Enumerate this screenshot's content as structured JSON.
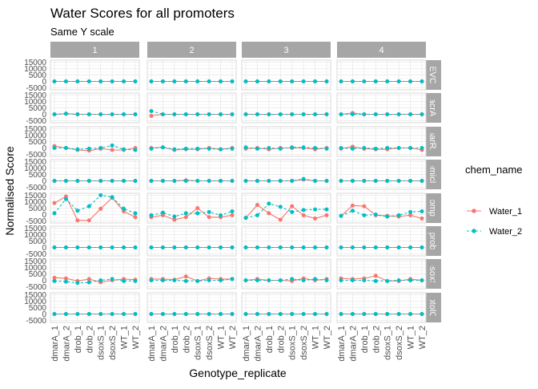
{
  "chart_data": {
    "type": "line",
    "title": "Water Scores for all promoters",
    "subtitle": "Same Y scale",
    "xlabel": "Genotype_replicate",
    "ylabel": "Normalised Score",
    "categories": [
      "dmarA_1",
      "dmarA_2",
      "drob_1",
      "drob_2",
      "dsoxS_1",
      "dsoxS_2",
      "WT_1",
      "WT_2"
    ],
    "ylim": [
      -6500,
      16500
    ],
    "yticks": [
      -5000,
      0,
      5000,
      10000,
      15000
    ],
    "ytick_labels": [
      "-5000",
      "0",
      "5000",
      "10000",
      "15000"
    ],
    "grid": true,
    "facet_columns": [
      "1",
      "2",
      "3",
      "4"
    ],
    "facet_rows": [
      "EVC",
      "pacrAB",
      "pmarRAB",
      "pmicF",
      "pompF",
      "prob",
      "psoxS",
      "ptolC"
    ],
    "legend": {
      "title": "chem_name",
      "position": "right",
      "entries": [
        "Water_1",
        "Water_2"
      ]
    },
    "series_styles": [
      {
        "name": "Water_1",
        "color": "#F8766D",
        "dash": "solid"
      },
      {
        "name": "Water_2",
        "color": "#00BFC4",
        "dash": "dashed"
      }
    ],
    "panels": [
      {
        "row": "EVC",
        "col": "1",
        "series": [
          {
            "name": "Water_1",
            "values": [
              0,
              0,
              0,
              0,
              0,
              0,
              0,
              0
            ]
          },
          {
            "name": "Water_2",
            "values": [
              0,
              0,
              0,
              0,
              0,
              0,
              0,
              0
            ]
          }
        ]
      },
      {
        "row": "EVC",
        "col": "2",
        "series": [
          {
            "name": "Water_1",
            "values": [
              0,
              0,
              0,
              0,
              0,
              0,
              0,
              0
            ]
          },
          {
            "name": "Water_2",
            "values": [
              0,
              0,
              0,
              0,
              0,
              0,
              0,
              0
            ]
          }
        ]
      },
      {
        "row": "EVC",
        "col": "3",
        "series": [
          {
            "name": "Water_1",
            "values": [
              0,
              0,
              0,
              0,
              0,
              0,
              0,
              0
            ]
          },
          {
            "name": "Water_2",
            "values": [
              0,
              0,
              0,
              0,
              0,
              0,
              0,
              0
            ]
          }
        ]
      },
      {
        "row": "EVC",
        "col": "4",
        "series": [
          {
            "name": "Water_1",
            "values": [
              0,
              0,
              0,
              0,
              0,
              0,
              0,
              0
            ]
          },
          {
            "name": "Water_2",
            "values": [
              0,
              0,
              0,
              0,
              0,
              0,
              0,
              0
            ]
          }
        ]
      },
      {
        "row": "pacrAB",
        "col": "1",
        "series": [
          {
            "name": "Water_1",
            "values": [
              0,
              500,
              0,
              0,
              0,
              0,
              0,
              0
            ]
          },
          {
            "name": "Water_2",
            "values": [
              0,
              500,
              0,
              0,
              0,
              0,
              0,
              0
            ]
          }
        ]
      },
      {
        "row": "pacrAB",
        "col": "2",
        "series": [
          {
            "name": "Water_1",
            "values": [
              -1200,
              0,
              0,
              0,
              0,
              0,
              0,
              0
            ]
          },
          {
            "name": "Water_2",
            "values": [
              2500,
              0,
              0,
              0,
              0,
              0,
              0,
              0
            ]
          }
        ]
      },
      {
        "row": "pacrAB",
        "col": "3",
        "series": [
          {
            "name": "Water_1",
            "values": [
              0,
              0,
              0,
              0,
              0,
              0,
              0,
              0
            ]
          },
          {
            "name": "Water_2",
            "values": [
              0,
              0,
              0,
              0,
              0,
              0,
              0,
              0
            ]
          }
        ]
      },
      {
        "row": "pacrAB",
        "col": "4",
        "series": [
          {
            "name": "Water_1",
            "values": [
              0,
              1000,
              0,
              0,
              0,
              0,
              0,
              0
            ]
          },
          {
            "name": "Water_2",
            "values": [
              0,
              0,
              0,
              0,
              0,
              0,
              0,
              0
            ]
          }
        ]
      },
      {
        "row": "pmarRAB",
        "col": "1",
        "series": [
          {
            "name": "Water_1",
            "values": [
              1500,
              0,
              -1500,
              -2000,
              -500,
              -1500,
              -1500,
              0
            ]
          },
          {
            "name": "Water_2",
            "values": [
              0,
              0,
              -1000,
              -500,
              0,
              2000,
              -1000,
              -1500
            ]
          }
        ]
      },
      {
        "row": "pmarRAB",
        "col": "2",
        "series": [
          {
            "name": "Water_1",
            "values": [
              0,
              500,
              -1500,
              -1000,
              -1000,
              0,
              -1000,
              0
            ]
          },
          {
            "name": "Water_2",
            "values": [
              -500,
              500,
              -1000,
              -500,
              -500,
              -500,
              -1000,
              -500
            ]
          }
        ]
      },
      {
        "row": "pmarRAB",
        "col": "3",
        "series": [
          {
            "name": "Water_1",
            "values": [
              -500,
              0,
              -1000,
              0,
              0,
              0,
              -1000,
              0
            ]
          },
          {
            "name": "Water_2",
            "values": [
              500,
              -500,
              0,
              -500,
              500,
              500,
              0,
              -500
            ]
          }
        ]
      },
      {
        "row": "pmarRAB",
        "col": "4",
        "series": [
          {
            "name": "Water_1",
            "values": [
              -500,
              1000,
              -500,
              -1000,
              -1000,
              0,
              0,
              -1500
            ]
          },
          {
            "name": "Water_2",
            "values": [
              0,
              -500,
              0,
              -500,
              0,
              0,
              0,
              0
            ]
          }
        ]
      },
      {
        "row": "pmicF",
        "col": "1",
        "series": [
          {
            "name": "Water_1",
            "values": [
              0,
              0,
              0,
              0,
              0,
              0,
              0,
              0
            ]
          },
          {
            "name": "Water_2",
            "values": [
              0,
              0,
              0,
              0,
              0,
              0,
              0,
              0
            ]
          }
        ]
      },
      {
        "row": "pmicF",
        "col": "2",
        "series": [
          {
            "name": "Water_1",
            "values": [
              0,
              0,
              0,
              500,
              0,
              0,
              0,
              0
            ]
          },
          {
            "name": "Water_2",
            "values": [
              0,
              0,
              0,
              0,
              0,
              0,
              0,
              0
            ]
          }
        ]
      },
      {
        "row": "pmicF",
        "col": "3",
        "series": [
          {
            "name": "Water_1",
            "values": [
              0,
              0,
              0,
              0,
              0,
              1000,
              0,
              0
            ]
          },
          {
            "name": "Water_2",
            "values": [
              0,
              0,
              0,
              0,
              0,
              1500,
              0,
              0
            ]
          }
        ]
      },
      {
        "row": "pmicF",
        "col": "4",
        "series": [
          {
            "name": "Water_1",
            "values": [
              0,
              0,
              0,
              0,
              0,
              0,
              0,
              0
            ]
          },
          {
            "name": "Water_2",
            "values": [
              0,
              0,
              0,
              0,
              0,
              0,
              0,
              0
            ]
          }
        ]
      },
      {
        "row": "pompF",
        "col": "1",
        "series": [
          {
            "name": "Water_1",
            "values": [
              9000,
              14000,
              -4500,
              -4500,
              4500,
              13000,
              2500,
              -2000
            ]
          },
          {
            "name": "Water_2",
            "values": [
              1000,
              12000,
              3000,
              6500,
              15000,
              13500,
              4500,
              1000
            ]
          }
        ]
      },
      {
        "row": "pompF",
        "col": "2",
        "series": [
          {
            "name": "Water_1",
            "values": [
              -2000,
              -500,
              -4000,
              -2000,
              5000,
              -2000,
              -2000,
              -500
            ]
          },
          {
            "name": "Water_2",
            "values": [
              -500,
              1500,
              -1500,
              1000,
              1000,
              2000,
              -500,
              2500
            ]
          }
        ]
      },
      {
        "row": "pompF",
        "col": "3",
        "series": [
          {
            "name": "Water_1",
            "values": [
              -2500,
              7500,
              1000,
              -4000,
              6500,
              -500,
              -3000,
              -500
            ]
          },
          {
            "name": "Water_2",
            "values": [
              -2500,
              -500,
              8500,
              6000,
              2000,
              3500,
              4000,
              4000
            ]
          }
        ]
      },
      {
        "row": "pompF",
        "col": "4",
        "series": [
          {
            "name": "Water_1",
            "values": [
              -1000,
              7000,
              6500,
              -500,
              -1000,
              -1500,
              -500,
              -3000
            ]
          },
          {
            "name": "Water_2",
            "values": [
              -1000,
              3000,
              -500,
              0,
              -1500,
              -500,
              2000,
              2500
            ]
          }
        ]
      },
      {
        "row": "prob",
        "col": "1",
        "series": [
          {
            "name": "Water_1",
            "values": [
              0,
              0,
              0,
              0,
              0,
              0,
              0,
              0
            ]
          },
          {
            "name": "Water_2",
            "values": [
              0,
              0,
              0,
              0,
              0,
              0,
              0,
              0
            ]
          }
        ]
      },
      {
        "row": "prob",
        "col": "2",
        "series": [
          {
            "name": "Water_1",
            "values": [
              0,
              0,
              0,
              0,
              0,
              0,
              0,
              0
            ]
          },
          {
            "name": "Water_2",
            "values": [
              0,
              0,
              0,
              0,
              0,
              0,
              0,
              0
            ]
          }
        ]
      },
      {
        "row": "prob",
        "col": "3",
        "series": [
          {
            "name": "Water_1",
            "values": [
              0,
              0,
              0,
              0,
              0,
              0,
              0,
              0
            ]
          },
          {
            "name": "Water_2",
            "values": [
              0,
              0,
              0,
              0,
              0,
              0,
              0,
              0
            ]
          }
        ]
      },
      {
        "row": "prob",
        "col": "4",
        "series": [
          {
            "name": "Water_1",
            "values": [
              0,
              0,
              0,
              0,
              0,
              0,
              0,
              0
            ]
          },
          {
            "name": "Water_2",
            "values": [
              0,
              0,
              0,
              0,
              0,
              0,
              0,
              0
            ]
          }
        ]
      },
      {
        "row": "psoxS",
        "col": "1",
        "series": [
          {
            "name": "Water_1",
            "values": [
              2000,
              1500,
              -500,
              1000,
              -1500,
              0,
              1000,
              500
            ]
          },
          {
            "name": "Water_2",
            "values": [
              -500,
              -1000,
              -2000,
              -1500,
              0,
              1000,
              -500,
              -500
            ]
          }
        ]
      },
      {
        "row": "psoxS",
        "col": "2",
        "series": [
          {
            "name": "Water_1",
            "values": [
              1000,
              1000,
              500,
              3000,
              -500,
              1500,
              1000,
              1000
            ]
          },
          {
            "name": "Water_2",
            "values": [
              0,
              0,
              0,
              -500,
              -500,
              0,
              0,
              1000
            ]
          }
        ]
      },
      {
        "row": "psoxS",
        "col": "3",
        "series": [
          {
            "name": "Water_1",
            "values": [
              0,
              1000,
              0,
              0,
              -500,
              1500,
              0,
              1000
            ]
          },
          {
            "name": "Water_2",
            "values": [
              0,
              0,
              0,
              0,
              1000,
              0,
              1000,
              0
            ]
          }
        ]
      },
      {
        "row": "psoxS",
        "col": "4",
        "series": [
          {
            "name": "Water_1",
            "values": [
              1500,
              1000,
              1500,
              3500,
              -500,
              -500,
              1000,
              0
            ]
          },
          {
            "name": "Water_2",
            "values": [
              0,
              0,
              0,
              -500,
              -500,
              0,
              0,
              0
            ]
          }
        ]
      },
      {
        "row": "ptolC",
        "col": "1",
        "series": [
          {
            "name": "Water_1",
            "values": [
              0,
              0,
              0,
              0,
              0,
              0,
              0,
              0
            ]
          },
          {
            "name": "Water_2",
            "values": [
              0,
              0,
              0,
              0,
              0,
              0,
              0,
              0
            ]
          }
        ]
      },
      {
        "row": "ptolC",
        "col": "2",
        "series": [
          {
            "name": "Water_1",
            "values": [
              0,
              0,
              0,
              0,
              0,
              0,
              0,
              0
            ]
          },
          {
            "name": "Water_2",
            "values": [
              0,
              0,
              0,
              0,
              0,
              0,
              0,
              0
            ]
          }
        ]
      },
      {
        "row": "ptolC",
        "col": "3",
        "series": [
          {
            "name": "Water_1",
            "values": [
              0,
              0,
              0,
              0,
              0,
              0,
              0,
              0
            ]
          },
          {
            "name": "Water_2",
            "values": [
              0,
              0,
              0,
              0,
              0,
              0,
              0,
              0
            ]
          }
        ]
      },
      {
        "row": "ptolC",
        "col": "4",
        "series": [
          {
            "name": "Water_1",
            "values": [
              0,
              0,
              0,
              0,
              0,
              0,
              0,
              0
            ]
          },
          {
            "name": "Water_2",
            "values": [
              0,
              0,
              0,
              0,
              0,
              0,
              0,
              0
            ]
          }
        ]
      }
    ]
  }
}
